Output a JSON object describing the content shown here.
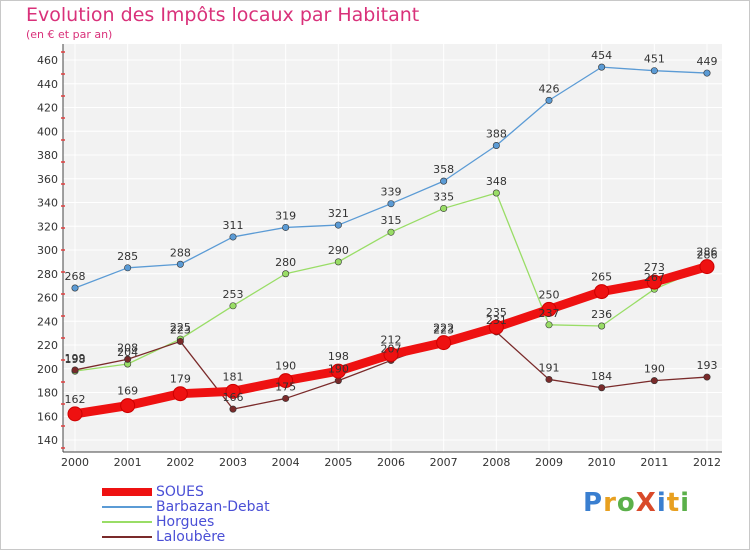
{
  "title": "Evolution des Impôts locaux par Habitant",
  "subtitle": "(en € et par an)",
  "logo": "ProXiti",
  "chart_data": {
    "type": "line",
    "title": "Evolution des Impôts locaux par Habitant",
    "subtitle": "(en € et par an)",
    "xlabel": "",
    "ylabel": "",
    "ylim": [
      140,
      460
    ],
    "ytick_step": 20,
    "grid": true,
    "legend_position": "bottom-left",
    "x": [
      2000,
      2001,
      2002,
      2003,
      2004,
      2005,
      2006,
      2007,
      2008,
      2009,
      2010,
      2011,
      2012
    ],
    "series": [
      {
        "name": "SOUES",
        "color": "#ee1111",
        "values": [
          162,
          169,
          179,
          181,
          190,
          198,
          212,
          222,
          235,
          250,
          265,
          273,
          286
        ]
      },
      {
        "name": "Barbazan-Debat",
        "color": "#5b9bd5",
        "values": [
          268,
          285,
          288,
          311,
          319,
          321,
          339,
          358,
          388,
          426,
          454,
          451,
          449
        ]
      },
      {
        "name": "Horgues",
        "color": "#99dd66",
        "values": [
          198,
          204,
          225,
          253,
          280,
          290,
          315,
          335,
          348,
          237,
          236,
          267,
          286
        ]
      },
      {
        "name": "Laloubère",
        "color": "#7a2a2a",
        "values": [
          199,
          208,
          223,
          166,
          175,
          190,
          207,
          223,
          231,
          191,
          184,
          190,
          193
        ]
      }
    ]
  }
}
